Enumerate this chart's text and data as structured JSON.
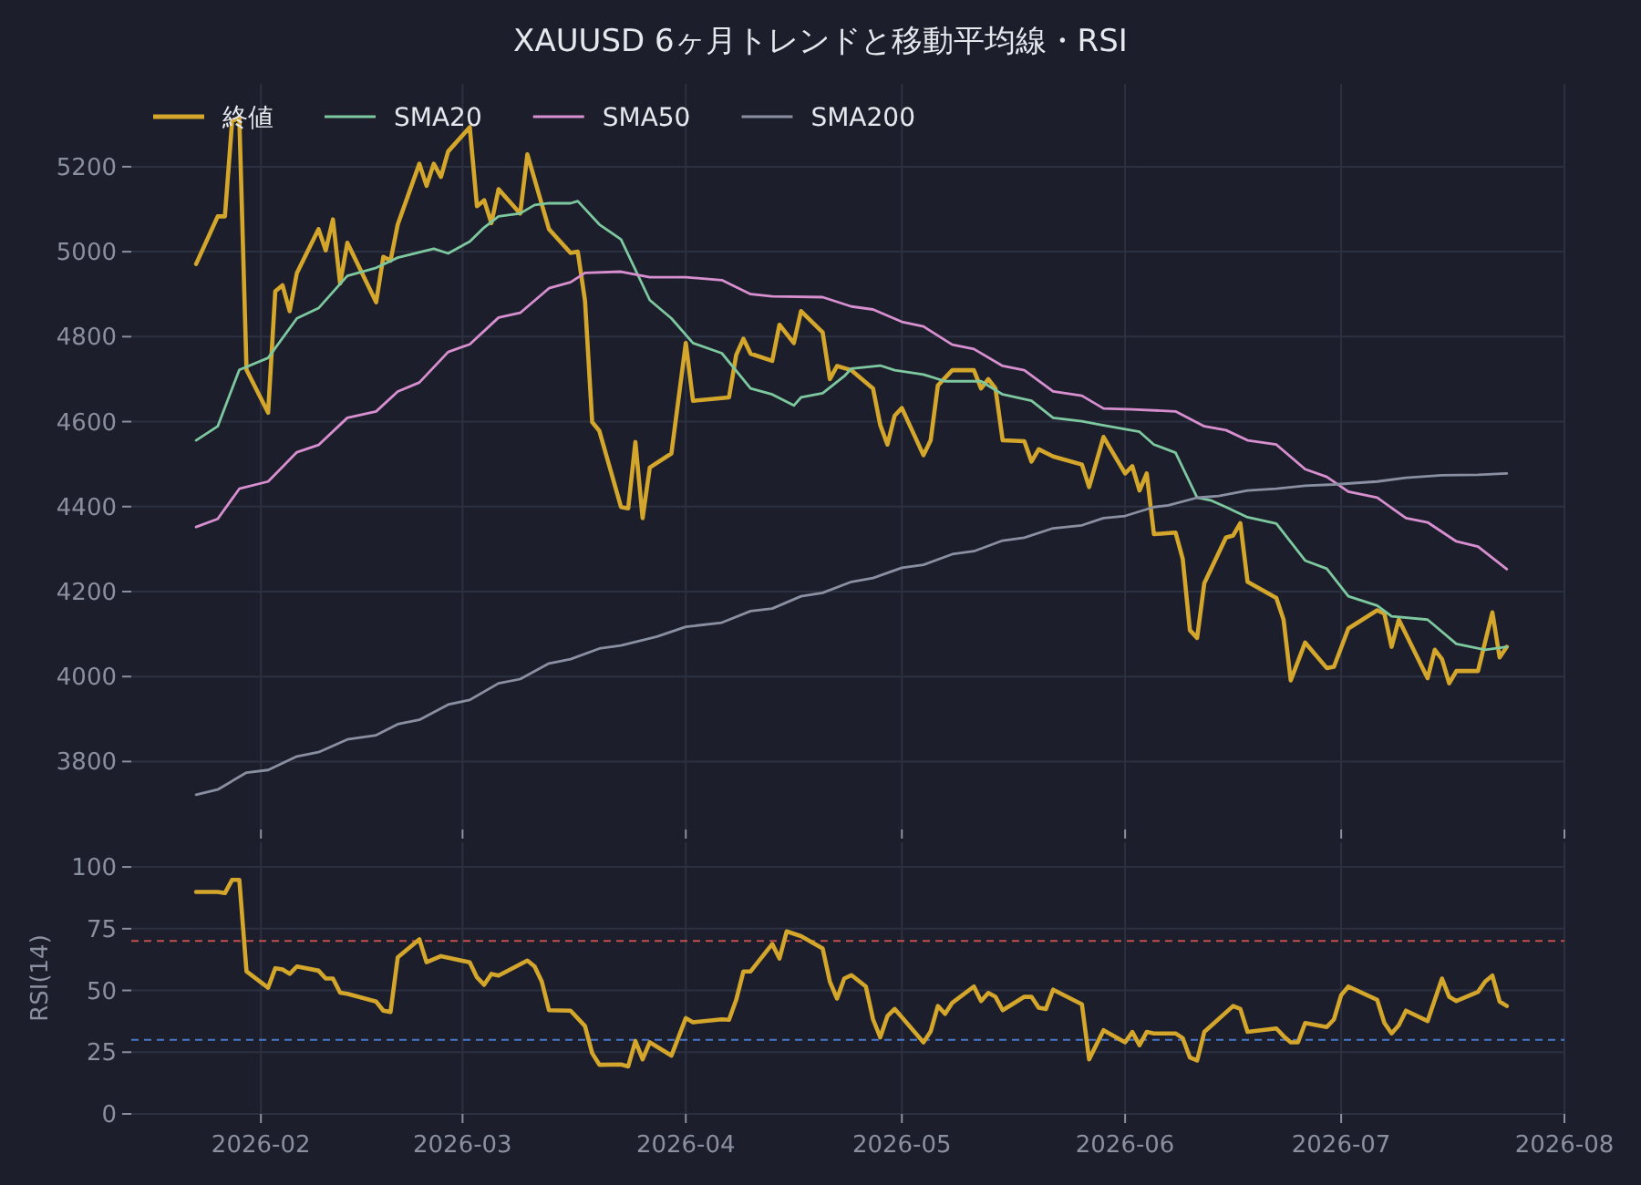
{
  "chart_data": [
    {
      "type": "line",
      "title": "XAUUSD 6ヶ月トレンドと移動平均線・RSI",
      "xlim": [
        "2026-01-14",
        "2026-08-01"
      ],
      "ylim": [
        3640,
        5395
      ],
      "yticks": [
        3800,
        4000,
        4200,
        4400,
        4600,
        4800,
        5000,
        5200
      ],
      "xticks": [
        {
          "value": "2026-02-01",
          "label": null
        },
        {
          "value": "2026-03-01",
          "label": null
        },
        {
          "value": "2026-04-01",
          "label": null
        },
        {
          "value": "2026-05-01",
          "label": null
        },
        {
          "value": "2026-06-01",
          "label": null
        },
        {
          "value": "2026-07-01",
          "label": null
        },
        {
          "value": "2026-08-01",
          "label": null
        }
      ],
      "tick_labels": "y",
      "grid": true,
      "legend": "top left",
      "series": [
        {
          "name": "終値",
          "color": "#d4a72c",
          "x": [
            "2026-01-23",
            "2026-01-26",
            "2026-01-27",
            "2026-01-28",
            "2026-01-29",
            "2026-01-30",
            "2026-02-02",
            "2026-02-03",
            "2026-02-04",
            "2026-02-05",
            "2026-02-06",
            "2026-02-09",
            "2026-02-10",
            "2026-02-11",
            "2026-02-12",
            "2026-02-13",
            "2026-02-17",
            "2026-02-18",
            "2026-02-19",
            "2026-02-20",
            "2026-02-23",
            "2026-02-24",
            "2026-02-25",
            "2026-02-26",
            "2026-02-27",
            "2026-03-02",
            "2026-03-03",
            "2026-03-04",
            "2026-03-05",
            "2026-03-06",
            "2026-03-09",
            "2026-03-10",
            "2026-03-13",
            "2026-03-16",
            "2026-03-17",
            "2026-03-18",
            "2026-03-19",
            "2026-03-20",
            "2026-03-23",
            "2026-03-24",
            "2026-03-25",
            "2026-03-26",
            "2026-03-27",
            "2026-03-30",
            "2026-04-01",
            "2026-04-02",
            "2026-04-07",
            "2026-04-08",
            "2026-04-09",
            "2026-04-10",
            "2026-04-13",
            "2026-04-14",
            "2026-04-16",
            "2026-04-17",
            "2026-04-20",
            "2026-04-21",
            "2026-04-22",
            "2026-04-24",
            "2026-04-27",
            "2026-04-28",
            "2026-04-29",
            "2026-04-30",
            "2026-05-01",
            "2026-05-04",
            "2026-05-05",
            "2026-05-06",
            "2026-05-08",
            "2026-05-11",
            "2026-05-12",
            "2026-05-13",
            "2026-05-14",
            "2026-05-15",
            "2026-05-18",
            "2026-05-19",
            "2026-05-20",
            "2026-05-22",
            "2026-05-26",
            "2026-05-27",
            "2026-05-29",
            "2026-06-01",
            "2026-06-02",
            "2026-06-03",
            "2026-06-04",
            "2026-06-05",
            "2026-06-08",
            "2026-06-09",
            "2026-06-10",
            "2026-06-11",
            "2026-06-12",
            "2026-06-15",
            "2026-06-16",
            "2026-06-17",
            "2026-06-18",
            "2026-06-22",
            "2026-06-23",
            "2026-06-24",
            "2026-06-26",
            "2026-06-29",
            "2026-06-30",
            "2026-07-02",
            "2026-07-06",
            "2026-07-07",
            "2026-07-08",
            "2026-07-09",
            "2026-07-13",
            "2026-07-14",
            "2026-07-15",
            "2026-07-16",
            "2026-07-17",
            "2026-07-20",
            "2026-07-22",
            "2026-07-23",
            "2026-07-24"
          ],
          "values": [
            4971,
            5083,
            5083,
            5307,
            5315,
            4722,
            4621,
            4907,
            4921,
            4860,
            4950,
            5053,
            5003,
            5076,
            4925,
            5021,
            4881,
            4988,
            4979,
            5064,
            5207,
            5155,
            5207,
            5176,
            5236,
            5293,
            5107,
            5121,
            5067,
            5147,
            5090,
            5229,
            5053,
            4997,
            5000,
            4885,
            4599,
            4578,
            4399,
            4396,
            4552,
            4373,
            4492,
            4525,
            4785,
            4649,
            4657,
            4757,
            4795,
            4760,
            4743,
            4828,
            4785,
            4860,
            4810,
            4700,
            4731,
            4721,
            4678,
            4592,
            4546,
            4614,
            4632,
            4521,
            4556,
            4685,
            4721,
            4721,
            4678,
            4700,
            4678,
            4556,
            4554,
            4506,
            4535,
            4518,
            4499,
            4446,
            4564,
            4478,
            4495,
            4438,
            4478,
            4335,
            4339,
            4277,
            4109,
            4091,
            4220,
            4327,
            4332,
            4361,
            4223,
            4185,
            4134,
            3991,
            4080,
            4020,
            4023,
            4113,
            4156,
            4148,
            4070,
            4134,
            3996,
            4063,
            4041,
            3984,
            4013,
            4013,
            4151,
            4045,
            4070
          ]
        },
        {
          "name": "SMA20",
          "color": "#7ec8a0",
          "x": [
            "2026-01-23",
            "2026-01-26",
            "2026-01-29",
            "2026-02-02",
            "2026-02-06",
            "2026-02-09",
            "2026-02-13",
            "2026-02-17",
            "2026-02-20",
            "2026-02-25",
            "2026-02-27",
            "2026-03-02",
            "2026-03-04",
            "2026-03-06",
            "2026-03-09",
            "2026-03-11",
            "2026-03-13",
            "2026-03-16",
            "2026-03-17",
            "2026-03-20",
            "2026-03-23",
            "2026-03-27",
            "2026-03-30",
            "2026-04-02",
            "2026-04-06",
            "2026-04-10",
            "2026-04-13",
            "2026-04-16",
            "2026-04-17",
            "2026-04-20",
            "2026-04-23",
            "2026-04-24",
            "2026-04-28",
            "2026-04-30",
            "2026-05-04",
            "2026-05-07",
            "2026-05-12",
            "2026-05-15",
            "2026-05-19",
            "2026-05-22",
            "2026-05-26",
            "2026-05-29",
            "2026-06-03",
            "2026-06-05",
            "2026-06-08",
            "2026-06-11",
            "2026-06-13",
            "2026-06-15",
            "2026-06-18",
            "2026-06-22",
            "2026-06-26",
            "2026-06-29",
            "2026-07-02",
            "2026-07-06",
            "2026-07-08",
            "2026-07-13",
            "2026-07-17",
            "2026-07-21",
            "2026-07-24"
          ],
          "values": [
            4556,
            4589,
            4722,
            4750,
            4843,
            4867,
            4943,
            4962,
            4986,
            5007,
            4996,
            5024,
            5057,
            5083,
            5090,
            5110,
            5114,
            5114,
            5119,
            5064,
            5029,
            4886,
            4843,
            4785,
            4761,
            4678,
            4664,
            4638,
            4657,
            4667,
            4707,
            4725,
            4732,
            4721,
            4711,
            4695,
            4695,
            4664,
            4649,
            4609,
            4601,
            4591,
            4576,
            4546,
            4527,
            4421,
            4414,
            4399,
            4375,
            4360,
            4273,
            4254,
            4189,
            4167,
            4142,
            4134,
            4077,
            4063,
            4070
          ]
        },
        {
          "name": "SMA50",
          "color": "#d88fd0",
          "x": [
            "2026-01-23",
            "2026-01-26",
            "2026-01-29",
            "2026-02-02",
            "2026-02-06",
            "2026-02-09",
            "2026-02-13",
            "2026-02-17",
            "2026-02-20",
            "2026-02-23",
            "2026-02-27",
            "2026-03-02",
            "2026-03-06",
            "2026-03-09",
            "2026-03-13",
            "2026-03-16",
            "2026-03-18",
            "2026-03-23",
            "2026-03-27",
            "2026-04-01",
            "2026-04-06",
            "2026-04-10",
            "2026-04-13",
            "2026-04-20",
            "2026-04-24",
            "2026-04-27",
            "2026-05-01",
            "2026-05-04",
            "2026-05-08",
            "2026-05-11",
            "2026-05-15",
            "2026-05-18",
            "2026-05-22",
            "2026-05-26",
            "2026-05-29",
            "2026-06-02",
            "2026-06-08",
            "2026-06-12",
            "2026-06-15",
            "2026-06-18",
            "2026-06-22",
            "2026-06-26",
            "2026-06-29",
            "2026-07-02",
            "2026-07-06",
            "2026-07-10",
            "2026-07-13",
            "2026-07-17",
            "2026-07-20",
            "2026-07-24"
          ],
          "values": [
            4352,
            4371,
            4442,
            4459,
            4528,
            4545,
            4609,
            4624,
            4671,
            4692,
            4764,
            4782,
            4845,
            4856,
            4914,
            4928,
            4950,
            4953,
            4940,
            4940,
            4933,
            4900,
            4895,
            4893,
            4871,
            4864,
            4835,
            4824,
            4781,
            4771,
            4731,
            4721,
            4671,
            4661,
            4631,
            4629,
            4624,
            4589,
            4580,
            4556,
            4546,
            4488,
            4470,
            4435,
            4421,
            4373,
            4363,
            4318,
            4306,
            4253
          ]
        },
        {
          "name": "SMA200",
          "color": "#8a90a2",
          "x": [
            "2026-01-23",
            "2026-01-26",
            "2026-01-30",
            "2026-02-02",
            "2026-02-06",
            "2026-02-09",
            "2026-02-13",
            "2026-02-17",
            "2026-02-20",
            "2026-02-23",
            "2026-02-27",
            "2026-03-02",
            "2026-03-06",
            "2026-03-09",
            "2026-03-13",
            "2026-03-16",
            "2026-03-20",
            "2026-03-23",
            "2026-03-28",
            "2026-04-01",
            "2026-04-06",
            "2026-04-10",
            "2026-04-13",
            "2026-04-17",
            "2026-04-20",
            "2026-04-24",
            "2026-04-27",
            "2026-05-01",
            "2026-05-04",
            "2026-05-08",
            "2026-05-11",
            "2026-05-15",
            "2026-05-18",
            "2026-05-22",
            "2026-05-26",
            "2026-05-29",
            "2026-06-01",
            "2026-06-05",
            "2026-06-07",
            "2026-06-11",
            "2026-06-14",
            "2026-06-18",
            "2026-06-22",
            "2026-06-26",
            "2026-06-30",
            "2026-07-06",
            "2026-07-10",
            "2026-07-15",
            "2026-07-20",
            "2026-07-24"
          ],
          "values": [
            3722,
            3734,
            3774,
            3780,
            3812,
            3822,
            3852,
            3862,
            3888,
            3898,
            3934,
            3945,
            3984,
            3994,
            4031,
            4041,
            4066,
            4073,
            4094,
            4117,
            4127,
            4154,
            4160,
            4189,
            4197,
            4223,
            4232,
            4256,
            4263,
            4288,
            4295,
            4320,
            4327,
            4349,
            4356,
            4373,
            4378,
            4399,
            4403,
            4421,
            4425,
            4438,
            4442,
            4449,
            4452,
            4459,
            4468,
            4474,
            4475,
            4478
          ]
        }
      ]
    },
    {
      "type": "line",
      "ylabel": "RSI(14)",
      "xlim": [
        "2026-01-14",
        "2026-08-01"
      ],
      "ylim": [
        0,
        110
      ],
      "yticks": [
        0,
        25,
        50,
        75,
        100
      ],
      "xticks": [
        {
          "value": "2026-02-01",
          "label": "2026-02"
        },
        {
          "value": "2026-03-01",
          "label": "2026-03"
        },
        {
          "value": "2026-04-01",
          "label": "2026-04"
        },
        {
          "value": "2026-05-01",
          "label": "2026-05"
        },
        {
          "value": "2026-06-01",
          "label": "2026-06"
        },
        {
          "value": "2026-07-01",
          "label": "2026-07"
        },
        {
          "value": "2026-08-01",
          "label": "2026-08"
        }
      ],
      "grid": true,
      "ref_lines": [
        {
          "axis": "y",
          "value": 70,
          "color": "#c0504d",
          "line_style": "dashed"
        },
        {
          "axis": "y",
          "value": 30,
          "color": "#4a78c8",
          "line_style": "dashed"
        }
      ],
      "series": [
        {
          "color": "#d4a72c",
          "x": [
            "2026-01-23",
            "2026-01-26",
            "2026-01-27",
            "2026-01-28",
            "2026-01-29",
            "2026-01-30",
            "2026-02-02",
            "2026-02-03",
            "2026-02-04",
            "2026-02-05",
            "2026-02-06",
            "2026-02-09",
            "2026-02-10",
            "2026-02-11",
            "2026-02-12",
            "2026-02-13",
            "2026-02-17",
            "2026-02-18",
            "2026-02-19",
            "2026-02-20",
            "2026-02-23",
            "2026-02-24",
            "2026-02-26",
            "2026-03-02",
            "2026-03-03",
            "2026-03-04",
            "2026-03-05",
            "2026-03-06",
            "2026-03-10",
            "2026-03-11",
            "2026-03-12",
            "2026-03-13",
            "2026-03-16",
            "2026-03-18",
            "2026-03-19",
            "2026-03-20",
            "2026-03-23",
            "2026-03-24",
            "2026-03-25",
            "2026-03-26",
            "2026-03-27",
            "2026-03-30",
            "2026-04-01",
            "2026-04-02",
            "2026-04-06",
            "2026-04-07",
            "2026-04-08",
            "2026-04-09",
            "2026-04-10",
            "2026-04-13",
            "2026-04-14",
            "2026-04-15",
            "2026-04-17",
            "2026-04-20",
            "2026-04-21",
            "2026-04-22",
            "2026-04-23",
            "2026-04-24",
            "2026-04-26",
            "2026-04-27",
            "2026-04-28",
            "2026-04-29",
            "2026-04-30",
            "2026-05-04",
            "2026-05-05",
            "2026-05-06",
            "2026-05-07",
            "2026-05-08",
            "2026-05-11",
            "2026-05-12",
            "2026-05-13",
            "2026-05-14",
            "2026-05-15",
            "2026-05-18",
            "2026-05-19",
            "2026-05-20",
            "2026-05-21",
            "2026-05-22",
            "2026-05-26",
            "2026-05-27",
            "2026-05-29",
            "2026-06-01",
            "2026-06-02",
            "2026-06-03",
            "2026-06-04",
            "2026-06-05",
            "2026-06-08",
            "2026-06-09",
            "2026-06-10",
            "2026-06-11",
            "2026-06-12",
            "2026-06-16",
            "2026-06-17",
            "2026-06-18",
            "2026-06-22",
            "2026-06-23",
            "2026-06-24",
            "2026-06-25",
            "2026-06-26",
            "2026-06-29",
            "2026-06-30",
            "2026-07-01",
            "2026-07-02",
            "2026-07-06",
            "2026-07-07",
            "2026-07-08",
            "2026-07-09",
            "2026-07-10",
            "2026-07-13",
            "2026-07-15",
            "2026-07-16",
            "2026-07-17",
            "2026-07-20",
            "2026-07-21",
            "2026-07-22",
            "2026-07-23",
            "2026-07-24"
          ],
          "values": [
            89.9,
            89.9,
            89.4,
            94.8,
            94.8,
            57.7,
            51.1,
            59,
            58.5,
            56.7,
            59.7,
            58,
            54.8,
            54.8,
            49.1,
            48.6,
            45.5,
            41.8,
            41.3,
            63.4,
            70.7,
            61.4,
            63.9,
            61.4,
            55.3,
            52.3,
            56.7,
            56,
            62.1,
            59.7,
            53.6,
            42,
            41.8,
            35.6,
            24.6,
            19.9,
            20,
            19.2,
            29.5,
            22.1,
            29,
            23.6,
            38.8,
            37.1,
            38.3,
            38.1,
            46.2,
            57.7,
            57.7,
            68.8,
            62.9,
            73.9,
            72,
            67,
            53.6,
            46.7,
            54.8,
            56.2,
            51.6,
            38.3,
            31,
            39.6,
            42.5,
            29,
            33.4,
            43.7,
            40.5,
            45,
            51.6,
            45.7,
            49,
            47.4,
            42,
            47.4,
            47.4,
            43,
            42.5,
            50.3,
            44.4,
            22.1,
            33.9,
            29,
            33.2,
            27.8,
            33.2,
            32.6,
            32.6,
            30.7,
            22.8,
            21.6,
            33.2,
            43.7,
            42.5,
            33.2,
            34.6,
            31.5,
            29,
            29,
            36.8,
            35.2,
            38.3,
            48.1,
            51.6,
            46.2,
            36.8,
            32.6,
            35.9,
            41.8,
            37.6,
            54.8,
            47.4,
            45.7,
            49.4,
            53.6,
            56,
            45.5,
            43.7
          ]
        }
      ]
    }
  ]
}
